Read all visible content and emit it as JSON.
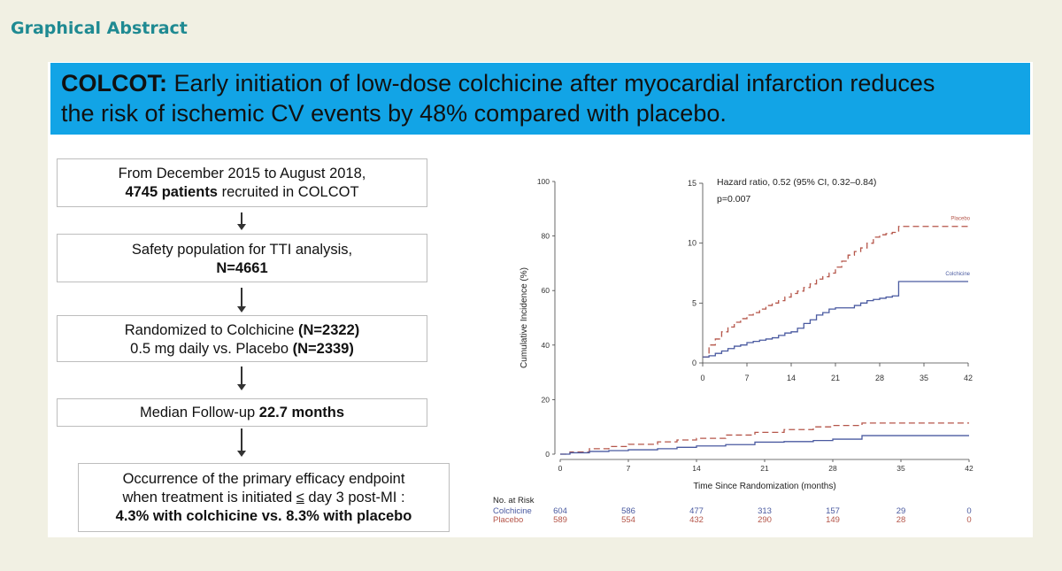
{
  "heading": "Graphical Abstract",
  "banner": {
    "bold": "COLCOT:",
    "line1": " Early initiation of low-dose colchicine after myocardial infarction reduces",
    "line2": "the risk of ischemic CV events by 48% compared with placebo."
  },
  "flow": {
    "box1": {
      "line1": "From December 2015 to August 2018,",
      "bold": "4745 patients",
      "rest": " recruited in COLCOT"
    },
    "box2": {
      "line1": "Safety population for TTI analysis,",
      "bold": "N=4661"
    },
    "box3": {
      "a": "Randomized to Colchicine ",
      "b": "(N=2322)",
      "c": "0.5 mg daily vs. Placebo ",
      "d": "(N=2339)"
    },
    "box4": {
      "a": "Median Follow-up ",
      "b": "22.7 months"
    },
    "box5": {
      "line1": "Occurrence of the primary efficacy endpoint",
      "line2a": "when treatment is initiated ",
      "line2sym": "≤",
      "line2b": " day 3 post-MI :",
      "bold": "4.3% with colchicine vs. 8.3% with placebo"
    }
  },
  "colors": {
    "colchicine": "#4a5aa0",
    "placebo": "#b5564a"
  },
  "chart_data": [
    {
      "type": "line",
      "id": "main",
      "xlabel": "Time Since Randomization (months)",
      "ylabel": "Cumulative Incidence (%)",
      "xlim": [
        0,
        42
      ],
      "ylim": [
        0,
        100
      ],
      "xticks": [
        0,
        7,
        14,
        21,
        28,
        35,
        42
      ],
      "yticks": [
        0,
        20,
        40,
        60,
        80,
        100
      ],
      "series": [
        {
          "name": "Placebo",
          "style": "dashed",
          "x": [
            0,
            1,
            3,
            5,
            7,
            10,
            12,
            14,
            17,
            20,
            23,
            26,
            28,
            31,
            42
          ],
          "y": [
            0,
            0.8,
            2,
            2.8,
            3.6,
            4.5,
            5.2,
            5.8,
            7,
            8,
            9,
            10,
            10.5,
            11.4,
            11.4
          ]
        },
        {
          "name": "Colchicine",
          "style": "solid",
          "x": [
            0,
            1,
            3,
            5,
            7,
            10,
            12,
            14,
            17,
            20,
            23,
            26,
            28,
            31,
            42
          ],
          "y": [
            0,
            0.5,
            1,
            1.3,
            1.6,
            2,
            2.5,
            3,
            3.5,
            4.4,
            4.6,
            5,
            5.5,
            6.8,
            6.8
          ]
        }
      ]
    },
    {
      "type": "line",
      "id": "inset",
      "annotation": "Hazard ratio, 0.52 (95% CI, 0.32–0.84)",
      "pvalue": "p=0.007",
      "xlim": [
        0,
        42
      ],
      "ylim": [
        0,
        15
      ],
      "xticks": [
        0,
        7,
        14,
        21,
        28,
        35,
        42
      ],
      "yticks": [
        0,
        5,
        10,
        15
      ],
      "series": [
        {
          "name": "Placebo",
          "label": "Placebo",
          "style": "dashed",
          "x": [
            0,
            1,
            2,
            3,
            4,
            5,
            6,
            7,
            8,
            9,
            10,
            11,
            12,
            13,
            14,
            15,
            16,
            17,
            18,
            19,
            20,
            21,
            22,
            23,
            24,
            25,
            26,
            27,
            28,
            29,
            30,
            31,
            42
          ],
          "y": [
            0.5,
            1.5,
            2,
            2.6,
            3,
            3.4,
            3.7,
            4,
            4.2,
            4.5,
            4.8,
            5,
            5.2,
            5.5,
            5.8,
            6,
            6.3,
            6.6,
            7,
            7.2,
            7.5,
            8,
            8.5,
            9,
            9.3,
            9.6,
            10,
            10.5,
            10.7,
            10.8,
            10.9,
            11.4,
            11.4
          ]
        },
        {
          "name": "Colchicine",
          "label": "Colchicine",
          "style": "solid",
          "x": [
            0,
            1,
            2,
            3,
            4,
            5,
            6,
            7,
            8,
            9,
            10,
            11,
            12,
            13,
            14,
            15,
            16,
            17,
            18,
            19,
            20,
            21,
            22,
            23,
            24,
            25,
            26,
            27,
            28,
            29,
            30,
            31,
            42
          ],
          "y": [
            0.5,
            0.6,
            0.8,
            1,
            1.2,
            1.4,
            1.5,
            1.7,
            1.8,
            1.9,
            2,
            2.1,
            2.3,
            2.5,
            2.6,
            2.9,
            3.3,
            3.6,
            4,
            4.2,
            4.5,
            4.6,
            4.6,
            4.6,
            4.8,
            5,
            5.2,
            5.3,
            5.4,
            5.5,
            5.6,
            6.8,
            6.8
          ]
        }
      ]
    }
  ],
  "risk_table": {
    "title": "No. at Risk",
    "rows": [
      {
        "label": "Colchicine",
        "values": [
          "604",
          "586",
          "477",
          "313",
          "157",
          "29",
          "0"
        ]
      },
      {
        "label": "Placebo",
        "values": [
          "589",
          "554",
          "432",
          "290",
          "149",
          "28",
          "0"
        ]
      }
    ]
  }
}
